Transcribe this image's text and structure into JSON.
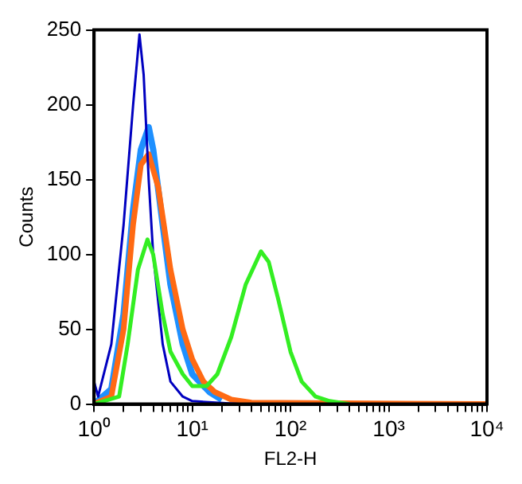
{
  "chart_data": {
    "type": "line",
    "xlabel": "FL2-H",
    "ylabel": "Counts",
    "log": "x",
    "grid": false,
    "legend": false,
    "marker": "none",
    "line_style": "solid",
    "xlim": [
      1,
      10000
    ],
    "xticks": [
      {
        "value": 1,
        "label": "10⁰"
      },
      {
        "value": 2,
        "label": null
      },
      {
        "value": 3,
        "label": null
      },
      {
        "value": 4,
        "label": null
      },
      {
        "value": 5,
        "label": null
      },
      {
        "value": 6,
        "label": null
      },
      {
        "value": 7,
        "label": null
      },
      {
        "value": 8,
        "label": null
      },
      {
        "value": 9,
        "label": null
      },
      {
        "value": 10,
        "label": "10¹"
      },
      {
        "value": 20,
        "label": null
      },
      {
        "value": 30,
        "label": null
      },
      {
        "value": 40,
        "label": null
      },
      {
        "value": 50,
        "label": null
      },
      {
        "value": 60,
        "label": null
      },
      {
        "value": 70,
        "label": null
      },
      {
        "value": 80,
        "label": null
      },
      {
        "value": 90,
        "label": null
      },
      {
        "value": 100,
        "label": "10²"
      },
      {
        "value": 200,
        "label": null
      },
      {
        "value": 300,
        "label": null
      },
      {
        "value": 400,
        "label": null
      },
      {
        "value": 500,
        "label": null
      },
      {
        "value": 600,
        "label": null
      },
      {
        "value": 700,
        "label": null
      },
      {
        "value": 800,
        "label": null
      },
      {
        "value": 900,
        "label": null
      },
      {
        "value": 1000,
        "label": "10³"
      },
      {
        "value": 2000,
        "label": null
      },
      {
        "value": 3000,
        "label": null
      },
      {
        "value": 4000,
        "label": null
      },
      {
        "value": 5000,
        "label": null
      },
      {
        "value": 6000,
        "label": null
      },
      {
        "value": 7000,
        "label": null
      },
      {
        "value": 8000,
        "label": null
      },
      {
        "value": 9000,
        "label": null
      },
      {
        "value": 10000,
        "label": "10⁴"
      }
    ],
    "ylim": [
      0,
      250
    ],
    "yticks": [
      0,
      50,
      100,
      150,
      200,
      250
    ],
    "series": [
      {
        "color": "#1e90ff",
        "x": [
          1,
          1.5,
          2,
          2.5,
          3,
          3.6,
          4,
          5,
          6,
          8,
          10,
          15,
          20
        ],
        "values": [
          0,
          10,
          60,
          130,
          170,
          185,
          170,
          120,
          80,
          40,
          20,
          8,
          3
        ]
      },
      {
        "color": "#ff6a13",
        "x": [
          1,
          1.5,
          2,
          2.5,
          3,
          3.6,
          4.5,
          5,
          6,
          8,
          10,
          13,
          17,
          25,
          40,
          10000
        ],
        "values": [
          0,
          5,
          50,
          120,
          160,
          167,
          145,
          125,
          90,
          50,
          30,
          15,
          8,
          3,
          1,
          0
        ]
      },
      {
        "color": "#0000c0",
        "x": [
          1,
          1.1,
          1.5,
          2,
          2.5,
          2.9,
          3.2,
          3.6,
          4,
          5,
          6,
          8,
          10,
          30
        ],
        "values": [
          15,
          5,
          40,
          120,
          200,
          247,
          220,
          150,
          100,
          40,
          15,
          5,
          2,
          0
        ]
      },
      {
        "color": "#33ee22",
        "x": [
          1,
          1.8,
          2.2,
          2.8,
          3.5,
          4,
          5,
          6,
          8,
          10,
          14,
          18,
          25,
          35,
          50,
          60,
          75,
          100,
          130,
          180,
          250,
          400
        ],
        "values": [
          0,
          5,
          40,
          90,
          110,
          100,
          60,
          35,
          20,
          12,
          12,
          20,
          45,
          80,
          102,
          95,
          70,
          35,
          15,
          5,
          2,
          0
        ]
      }
    ]
  }
}
